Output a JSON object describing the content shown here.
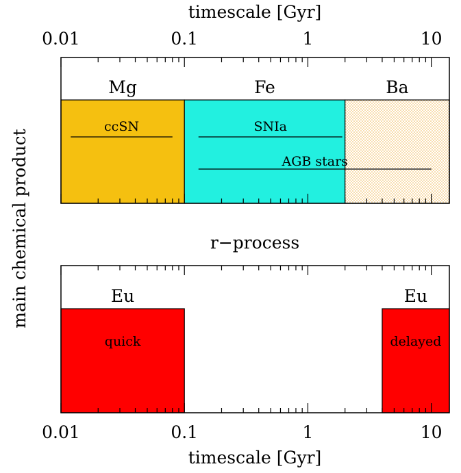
{
  "chart_data": {
    "type": "area",
    "x_scale": "log",
    "xlim": [
      0.01,
      14
    ],
    "top_axis_label": "timescale [Gyr]",
    "bottom_axis_label": "timescale [Gyr]",
    "ylabel": "main chemical product",
    "x_ticks": [
      {
        "value": 0.01,
        "label": "0.01"
      },
      {
        "value": 0.1,
        "label": "0.1"
      },
      {
        "value": 1,
        "label": "1"
      },
      {
        "value": 10,
        "label": "10"
      }
    ],
    "panels": [
      {
        "title": "",
        "regions": [
          {
            "element": "Mg",
            "x0": 0.01,
            "x1": 0.1,
            "color": "#f5c010",
            "pattern": "solid"
          },
          {
            "element": "Fe",
            "x0": 0.1,
            "x1": 2,
            "color": "#22f0e0",
            "pattern": "solid"
          },
          {
            "element": "Ba",
            "x0": 2,
            "x1": 14,
            "color": "#f0b040",
            "pattern": "dots"
          }
        ],
        "sources": [
          {
            "label": "ccSN",
            "x0": 0.012,
            "x1": 0.08,
            "level": "upper"
          },
          {
            "label": "SNIa",
            "x0": 0.13,
            "x1": 1.9,
            "level": "upper"
          },
          {
            "label": "AGB stars",
            "x0": 0.13,
            "x1": 10,
            "level": "lower"
          }
        ]
      },
      {
        "title": "r−process",
        "regions": [
          {
            "element": "Eu",
            "source": "quick",
            "x0": 0.01,
            "x1": 0.1,
            "color": "#ff0000",
            "pattern": "solid"
          },
          {
            "element": "Eu",
            "source": "delayed",
            "x0": 4,
            "x1": 14,
            "color": "#ff0000",
            "pattern": "solid"
          }
        ],
        "sources": []
      }
    ]
  }
}
